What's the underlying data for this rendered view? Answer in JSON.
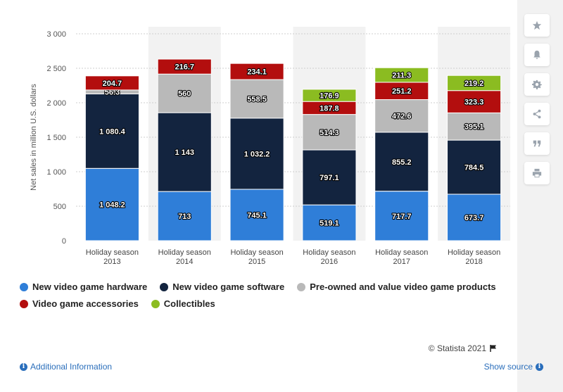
{
  "chart_data": {
    "type": "bar",
    "stacked": true,
    "categories": [
      [
        "Holiday season",
        "2013"
      ],
      [
        "Holiday season",
        "2014"
      ],
      [
        "Holiday season",
        "2015"
      ],
      [
        "Holiday season",
        "2016"
      ],
      [
        "Holiday season",
        "2017"
      ],
      [
        "Holiday season",
        "2018"
      ]
    ],
    "series": [
      {
        "name": "New video game hardware",
        "color": "#2f7ed8",
        "values": [
          1048.2,
          713,
          745.1,
          519.1,
          717.7,
          673.7
        ],
        "labels": [
          "1 048.2",
          "713",
          "745.1",
          "519.1",
          "717.7",
          "673.7"
        ]
      },
      {
        "name": "New video game software",
        "color": "#13243f",
        "values": [
          1080.4,
          1143,
          1032.2,
          797.1,
          855.2,
          784.5
        ],
        "labels": [
          "1 080.4",
          "1 143",
          "1 032.2",
          "797.1",
          "855.2",
          "784.5"
        ]
      },
      {
        "name": "Pre-owned and value video game products",
        "color": "#b9b9b9",
        "values": [
          56.3,
          560,
          558.5,
          514.3,
          472.6,
          395.1
        ],
        "labels": [
          "56.3",
          "560",
          "558.5",
          "514.3",
          "472.6",
          "395.1"
        ]
      },
      {
        "name": "Video game accessories",
        "color": "#b30e0e",
        "values": [
          204.7,
          216.7,
          234.1,
          187.8,
          251.2,
          323.3
        ],
        "labels": [
          "204.7",
          "216.7",
          "234.1",
          "187.8",
          "251.2",
          "323.3"
        ]
      },
      {
        "name": "Collectibles",
        "color": "#8bbc21",
        "values": [
          0,
          0,
          0,
          176.9,
          211.3,
          219.2
        ],
        "labels": [
          "",
          "",
          "",
          "176.9",
          "211.3",
          "219.2"
        ]
      }
    ],
    "ylabel": "Net sales in million U.S. dollars",
    "ylim": [
      0,
      3000
    ],
    "yticks": [
      0,
      500,
      1000,
      1500,
      2000,
      2500,
      3000
    ],
    "ytick_labels": [
      "0",
      "500",
      "1 000",
      "1 500",
      "2 000",
      "2 500",
      "3 000"
    ],
    "grid": true,
    "legend_position": "bottom-left"
  },
  "credits": "© Statista 2021",
  "footer": {
    "additional_info": "Additional Information",
    "show_source": "Show source"
  },
  "tools": [
    "star-icon",
    "bell-icon",
    "gear-icon",
    "share-icon",
    "quote-icon",
    "print-icon"
  ]
}
